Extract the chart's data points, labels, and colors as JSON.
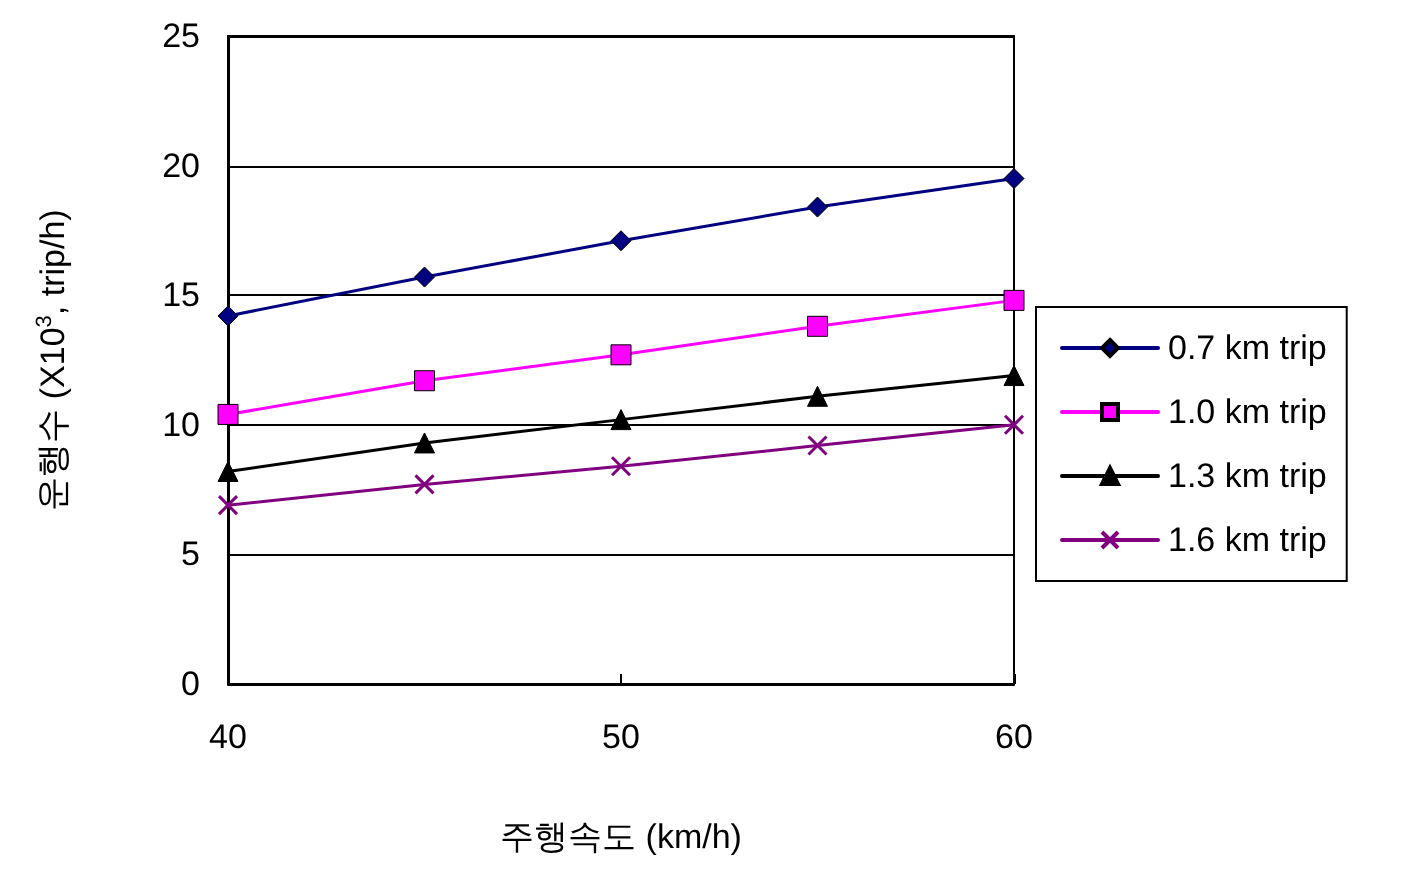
{
  "chart_data": {
    "type": "line",
    "xlabel": "주행속도 (km/h)",
    "ylabel": "운행수 (X10$^{3}$, trip/h)",
    "x": [
      40,
      45,
      50,
      55,
      60
    ],
    "xlim": [
      40,
      60
    ],
    "xticks": [
      40,
      50,
      60
    ],
    "ylim": [
      0,
      25
    ],
    "yticks": [
      0,
      5,
      10,
      15,
      20,
      25
    ],
    "grid": "y",
    "legend": "right",
    "series": [
      {
        "name": "0.7 km trip",
        "color": "#000080",
        "marker": "diamond",
        "values": [
          14.2,
          15.7,
          17.1,
          18.4,
          19.5
        ]
      },
      {
        "name": "1.0 km trip",
        "color": "#ff00ff",
        "marker": "square",
        "values": [
          10.4,
          11.7,
          12.7,
          13.8,
          14.8
        ]
      },
      {
        "name": "1.3 km trip",
        "color": "#000000",
        "marker": "triangle",
        "values": [
          8.2,
          9.3,
          10.2,
          11.1,
          11.9
        ]
      },
      {
        "name": "1.6 km trip",
        "color": "#800080",
        "marker": "cross",
        "values": [
          6.9,
          7.7,
          8.4,
          9.2,
          10.0
        ]
      }
    ]
  }
}
